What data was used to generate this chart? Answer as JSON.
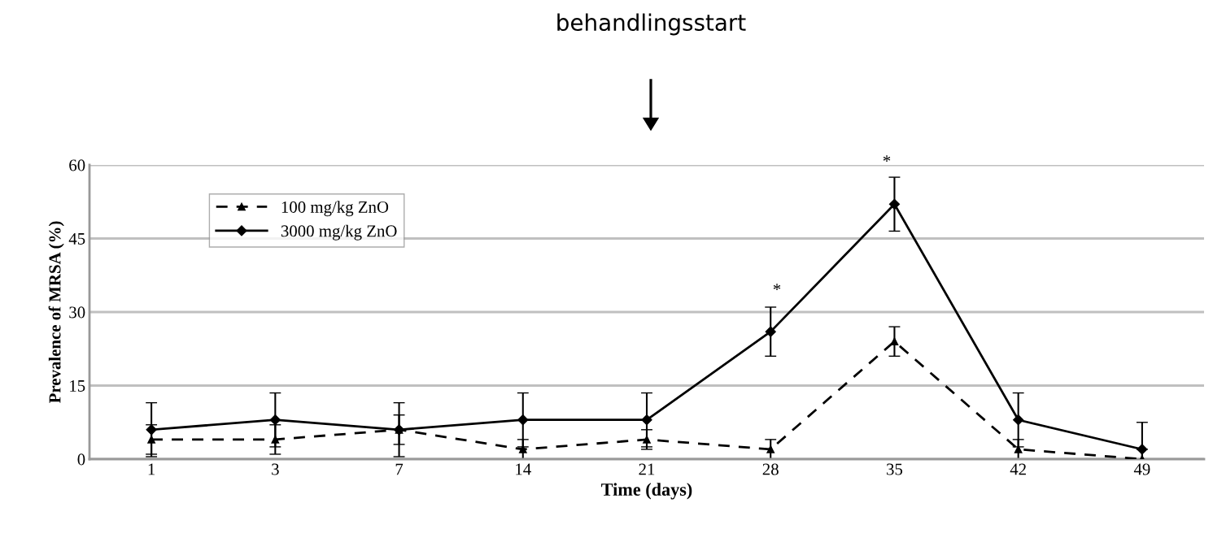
{
  "chart_data": {
    "type": "line",
    "xlabel": "Time (days)",
    "ylabel": "Prevalence of MRSA (%)",
    "categories": [
      "1",
      "3",
      "7",
      "14",
      "21",
      "28",
      "35",
      "42",
      "49"
    ],
    "series": [
      {
        "name": "100 mg/kg ZnO",
        "color": "#000000",
        "marker": "triangle",
        "line_style": "dashed",
        "values": [
          4,
          4,
          6,
          2,
          4,
          2,
          24,
          2,
          0
        ],
        "errors": [
          3,
          3,
          3,
          2,
          2,
          2,
          3,
          2,
          2
        ]
      },
      {
        "name": "3000 mg/kg ZnO",
        "color": "#000000",
        "marker": "diamond",
        "line_style": "solid",
        "values": [
          6,
          8,
          6,
          8,
          8,
          26,
          52,
          8,
          2
        ],
        "errors": [
          5.5,
          5.5,
          5.5,
          5.5,
          5.5,
          5,
          5.5,
          5.5,
          5.5
        ]
      }
    ],
    "ylim": [
      0,
      60
    ],
    "yticks": [
      0,
      15,
      30,
      45,
      60
    ],
    "grid": "y",
    "legend": "top left",
    "annotations": [
      "behandlingsstart",
      "*",
      "*"
    ]
  }
}
